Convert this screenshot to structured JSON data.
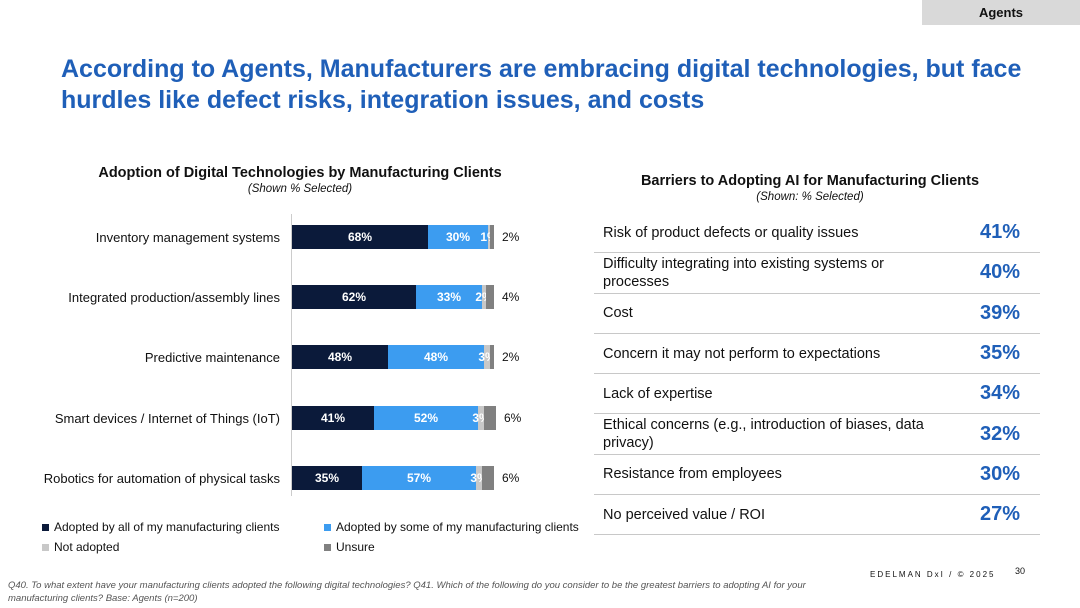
{
  "tag": "Agents",
  "title": "According to Agents, Manufacturers are embracing digital technologies, but face hurdles like defect risks, integration issues, and costs",
  "chart_data": {
    "type": "bar",
    "orientation": "horizontal-stacked",
    "title": "Adoption of Digital Technologies by Manufacturing Clients",
    "subtitle": "(Shown % Selected)",
    "categories": [
      "Inventory management systems",
      "Integrated production/assembly lines",
      "Predictive maintenance",
      "Smart devices / Internet of Things (IoT)",
      "Robotics for automation of physical tasks"
    ],
    "series": [
      {
        "name": "Adopted by all of my manufacturing clients",
        "color": "#0b1a3a",
        "values": [
          68,
          62,
          48,
          41,
          35
        ]
      },
      {
        "name": "Adopted by some of my manufacturing clients",
        "color": "#3c9cf0",
        "values": [
          30,
          33,
          48,
          52,
          57
        ]
      },
      {
        "name": "Not adopted",
        "color": "#c8c8c8",
        "values": [
          1,
          2,
          3,
          3,
          3
        ]
      },
      {
        "name": "Unsure",
        "color": "#808080",
        "values": [
          2,
          4,
          2,
          6,
          6
        ]
      }
    ],
    "xlim": [
      0,
      100
    ]
  },
  "barriers": {
    "title": "Barriers to Adopting AI for Manufacturing Clients",
    "subtitle": "(Shown: % Selected)",
    "items": [
      {
        "label": "Risk of product defects or quality issues",
        "value": "41%"
      },
      {
        "label": "Difficulty integrating into existing systems or processes",
        "value": "40%"
      },
      {
        "label": "Cost",
        "value": "39%"
      },
      {
        "label": "Concern it may not perform to expectations",
        "value": "35%"
      },
      {
        "label": "Lack of expertise",
        "value": "34%"
      },
      {
        "label": "Ethical concerns (e.g., introduction of biases, data privacy)",
        "value": "32%"
      },
      {
        "label": "Resistance from employees",
        "value": "30%"
      },
      {
        "label": "No perceived value / ROI",
        "value": "27%"
      }
    ]
  },
  "footnote": "Q40. To what extent have your manufacturing clients adopted the following digital technologies? Q41. Which of the following do you consider to be the greatest barriers to adopting AI for your manufacturing clients? Base: Agents (n=200)",
  "brand": "EDELMAN DxI / © 2025",
  "page": "30"
}
